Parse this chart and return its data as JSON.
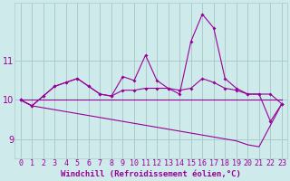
{
  "x": [
    0,
    1,
    2,
    3,
    4,
    5,
    6,
    7,
    8,
    9,
    10,
    11,
    12,
    13,
    14,
    15,
    16,
    17,
    18,
    19,
    20,
    21,
    22,
    23
  ],
  "line_jagged": [
    10.0,
    9.85,
    10.1,
    10.35,
    10.45,
    10.55,
    10.35,
    10.15,
    10.1,
    10.6,
    10.5,
    11.15,
    10.5,
    10.3,
    10.15,
    11.5,
    12.2,
    11.85,
    10.55,
    10.3,
    10.15,
    10.15,
    9.45,
    9.9
  ],
  "line_smooth": [
    10.0,
    9.85,
    10.1,
    10.35,
    10.45,
    10.55,
    10.35,
    10.15,
    10.1,
    10.25,
    10.25,
    10.3,
    10.3,
    10.3,
    10.25,
    10.3,
    10.55,
    10.45,
    10.3,
    10.25,
    10.15,
    10.15,
    10.15,
    9.9
  ],
  "line_flat": [
    10.0,
    10.0,
    10.0,
    10.0,
    10.0,
    10.0,
    10.0,
    10.0,
    10.0,
    10.0,
    10.0,
    10.0,
    10.0,
    10.0,
    10.0,
    10.0,
    10.0,
    10.0,
    10.0,
    10.0,
    10.0,
    10.0,
    10.0,
    10.0
  ],
  "line_decline": [
    10.0,
    9.85,
    9.8,
    9.75,
    9.7,
    9.65,
    9.6,
    9.55,
    9.5,
    9.45,
    9.4,
    9.35,
    9.3,
    9.25,
    9.2,
    9.15,
    9.1,
    9.05,
    9.0,
    8.95,
    8.85,
    8.8,
    9.35,
    9.9
  ],
  "line_color": "#990099",
  "bg_color": "#ceeaea",
  "grid_color": "#aacccc",
  "axis_color": "#990099",
  "spine_color": "#aaaaaa",
  "yticks": [
    9,
    10,
    11
  ],
  "ylim": [
    8.5,
    12.5
  ],
  "xlim": [
    -0.5,
    23.5
  ],
  "xlabel": "Windchill (Refroidissement éolien,°C)",
  "xlabel_fontsize": 6.5,
  "tick_fontsize": 6
}
